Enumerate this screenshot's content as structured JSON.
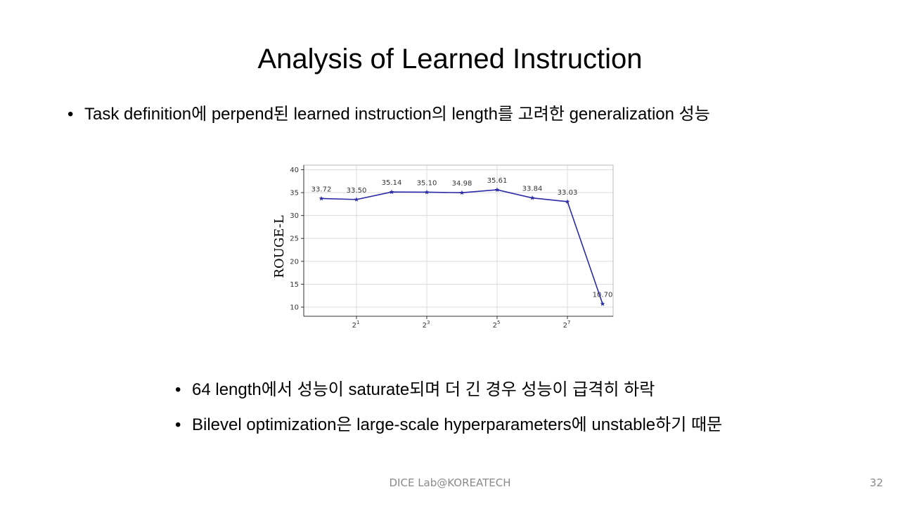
{
  "slide": {
    "title": "Analysis of Learned Instruction",
    "bullets": [
      "Task definition에 perpend된 learned instruction의 length를 고려한 generalization 성능",
      "64 length에서 성능이 saturate되며 더 긴 경우 성능이 급격히 하락",
      "Bilevel optimization은 large-scale hyperparameters에 unstable하기 때문"
    ],
    "bullet_glyph": "•",
    "footer": "DICE  Lab@KOREATECH",
    "page_number": "32"
  },
  "chart_data": {
    "type": "line",
    "ylabel": "ROUGE-L",
    "xlabel": "",
    "ylim": [
      10,
      40
    ],
    "yticks": [
      10,
      15,
      20,
      25,
      30,
      35,
      40
    ],
    "xticks": [
      {
        "base": "2",
        "exp": "1",
        "position": 1
      },
      {
        "base": "2",
        "exp": "3",
        "position": 3
      },
      {
        "base": "2",
        "exp": "5",
        "position": 5
      },
      {
        "base": "2",
        "exp": "7",
        "position": 7
      }
    ],
    "x_exponent": [
      0,
      1,
      2,
      3,
      4,
      5,
      6,
      7,
      8
    ],
    "series": [
      {
        "values": [
          33.72,
          33.5,
          35.14,
          35.1,
          34.98,
          35.61,
          33.84,
          33.03,
          10.7
        ],
        "labels": [
          "33.72",
          "33.50",
          "35.14",
          "35.10",
          "34.98",
          "35.61",
          "33.84",
          "33.03",
          "10.70"
        ]
      }
    ],
    "marker": "star",
    "color": "#2b2ba6",
    "grid": true
  }
}
